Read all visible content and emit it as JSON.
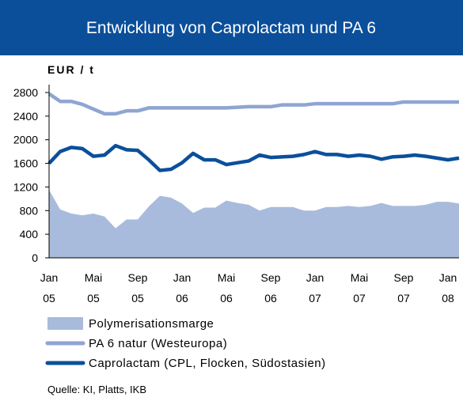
{
  "chart_data": {
    "type": "line",
    "title": "Entwicklung von Caprolactam und PA 6",
    "y_label": "EUR / t",
    "categories": [
      [
        "Jan",
        "05"
      ],
      null,
      null,
      null,
      [
        "Mai",
        "05"
      ],
      null,
      null,
      null,
      [
        "Sep",
        "05"
      ],
      null,
      null,
      null,
      [
        "Jan",
        "06"
      ],
      null,
      null,
      null,
      [
        "Mai",
        "06"
      ],
      null,
      null,
      null,
      [
        "Sep",
        "06"
      ],
      null,
      null,
      null,
      [
        "Jan",
        "07"
      ],
      null,
      null,
      null,
      [
        "Mai",
        "07"
      ],
      null,
      null,
      null,
      [
        "Sep",
        "07"
      ],
      null,
      null,
      null,
      [
        "Jan",
        "08"
      ],
      null
    ],
    "series": [
      {
        "name": "Polymerisationsmarge",
        "style": "area",
        "color": "#a9bbdc",
        "values": [
          1150,
          820,
          750,
          720,
          750,
          700,
          500,
          650,
          650,
          870,
          1050,
          1020,
          920,
          760,
          850,
          850,
          970,
          930,
          900,
          800,
          860,
          860,
          860,
          800,
          800,
          860,
          860,
          880,
          860,
          880,
          930,
          880,
          880,
          880,
          900,
          950,
          950,
          920
        ]
      },
      {
        "name": "PA 6 natur (Westeuropa)",
        "style": "line",
        "color": "#8fa5d2",
        "values": [
          2780,
          2650,
          2650,
          2600,
          2520,
          2440,
          2440,
          2490,
          2490,
          2540,
          2540,
          2540,
          2540,
          2540,
          2540,
          2540,
          2540,
          2550,
          2560,
          2560,
          2560,
          2590,
          2590,
          2590,
          2610,
          2610,
          2610,
          2610,
          2610,
          2610,
          2610,
          2610,
          2640,
          2640,
          2640,
          2640,
          2640,
          2640
        ]
      },
      {
        "name": "Caprolactam (CPL, Flocken, Südostasien)",
        "style": "line",
        "color": "#0b4f9b",
        "values": [
          1600,
          1800,
          1870,
          1850,
          1720,
          1740,
          1900,
          1830,
          1820,
          1660,
          1480,
          1500,
          1610,
          1770,
          1660,
          1660,
          1580,
          1610,
          1640,
          1740,
          1700,
          1710,
          1720,
          1750,
          1800,
          1750,
          1750,
          1720,
          1740,
          1720,
          1670,
          1710,
          1720,
          1740,
          1720,
          1690,
          1660,
          1690
        ]
      }
    ],
    "ylim": [
      0,
      2800
    ],
    "yticks": [
      0,
      400,
      800,
      1200,
      1600,
      2000,
      2400,
      2800
    ],
    "source": "Quelle: KI, Platts, IKB"
  }
}
